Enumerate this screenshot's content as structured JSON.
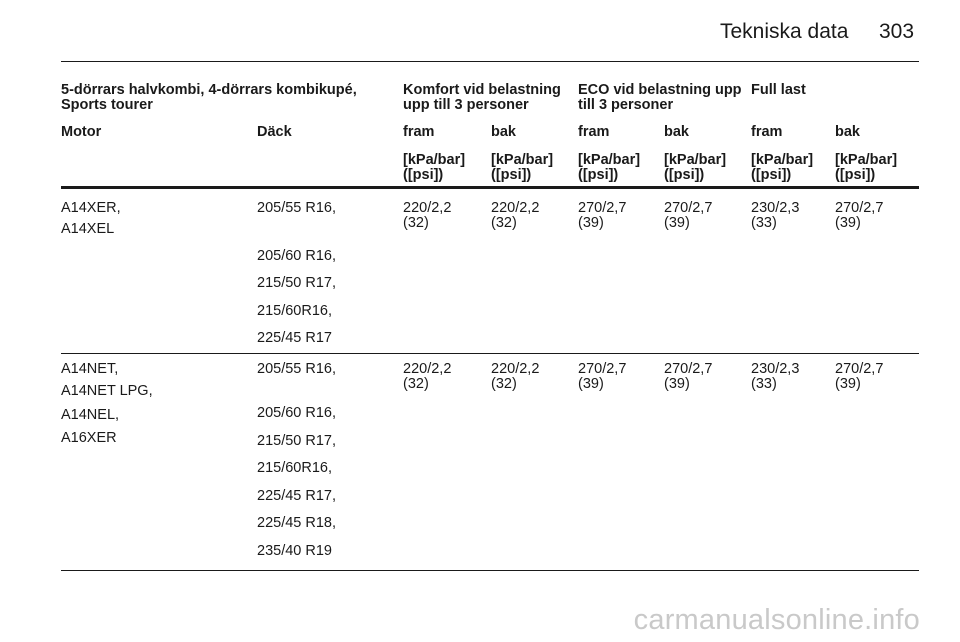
{
  "page": {
    "title": "Tekniska data",
    "number": "303"
  },
  "table": {
    "group_headers": [
      "5-dörrars halvkombi, 4-dörrars kombikupé,\nSports tourer",
      "Komfort vid belastning\nupp till 3 personer",
      "ECO vid belastning upp\ntill 3 personer",
      "Full last"
    ],
    "column_labels": [
      "Motor",
      "Däck",
      "fram",
      "bak",
      "fram",
      "bak",
      "fram",
      "bak"
    ],
    "unit_label": "[kPa/bar]\n([psi])",
    "rows": [
      {
        "engines": [
          "A14XER,",
          "A14XEL"
        ],
        "tyres": [
          "205/55 R16,",
          "205/60 R16,",
          "215/50 R17,",
          "215/60R16,",
          "225/45 R17"
        ],
        "pressures": [
          {
            "value": "220/2,2",
            "psi": "(32)"
          },
          {
            "value": "220/2,2",
            "psi": "(32)"
          },
          {
            "value": "270/2,7",
            "psi": "(39)"
          },
          {
            "value": "270/2,7",
            "psi": "(39)"
          },
          {
            "value": "230/2,3",
            "psi": "(33)"
          },
          {
            "value": "270/2,7",
            "psi": "(39)"
          }
        ]
      },
      {
        "engines": [
          "A14NET,",
          "A14NET LPG,",
          "A14NEL,",
          "A16XER"
        ],
        "tyres": [
          "205/55 R16,",
          "205/60 R16,",
          "215/50 R17,",
          "215/60R16,",
          "225/45 R17,",
          "225/45 R18,",
          "235/40 R19"
        ],
        "pressures": [
          {
            "value": "220/2,2",
            "psi": "(32)"
          },
          {
            "value": "220/2,2",
            "psi": "(32)"
          },
          {
            "value": "270/2,7",
            "psi": "(39)"
          },
          {
            "value": "270/2,7",
            "psi": "(39)"
          },
          {
            "value": "230/2,3",
            "psi": "(33)"
          },
          {
            "value": "270/2,7",
            "psi": "(39)"
          }
        ]
      }
    ]
  },
  "watermark": "carmanualsonline.info"
}
